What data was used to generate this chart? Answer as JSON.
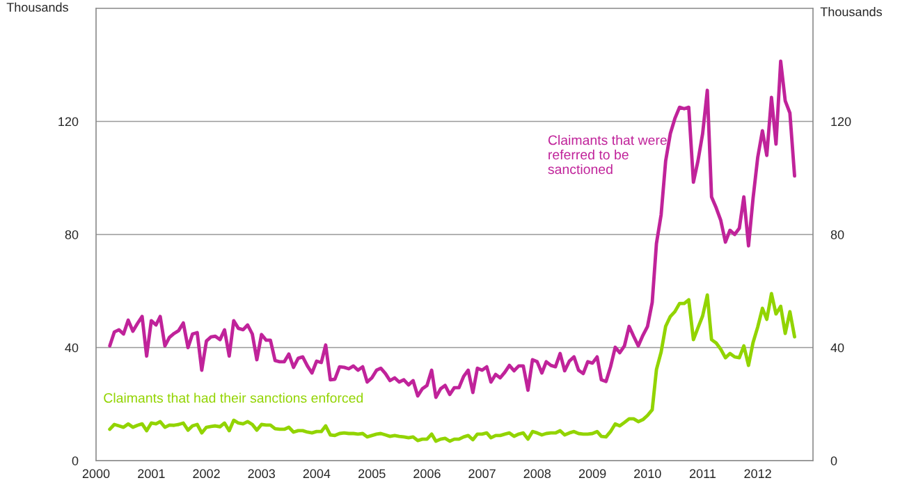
{
  "chart_data": {
    "type": "line",
    "ylabel": "Thousands",
    "y2label": "Thousands",
    "x": [
      "2000-04",
      "2000-05",
      "2000-06",
      "2000-07",
      "2000-08",
      "2000-09",
      "2000-10",
      "2000-11",
      "2000-12",
      "2001-01",
      "2001-02",
      "2001-03",
      "2001-04",
      "2001-05",
      "2001-06",
      "2001-07",
      "2001-08",
      "2001-09",
      "2001-10",
      "2001-11",
      "2001-12",
      "2002-01",
      "2002-02",
      "2002-03",
      "2002-04",
      "2002-05",
      "2002-06",
      "2002-07",
      "2002-08",
      "2002-09",
      "2002-10",
      "2002-11",
      "2002-12",
      "2003-01",
      "2003-02",
      "2003-03",
      "2003-04",
      "2003-05",
      "2003-06",
      "2003-07",
      "2003-08",
      "2003-09",
      "2003-10",
      "2003-11",
      "2003-12",
      "2004-01",
      "2004-02",
      "2004-03",
      "2004-04",
      "2004-05",
      "2004-06",
      "2004-07",
      "2004-08",
      "2004-09",
      "2004-10",
      "2004-11",
      "2004-12",
      "2005-01",
      "2005-02",
      "2005-03",
      "2005-04",
      "2005-05",
      "2005-06",
      "2005-07",
      "2005-08",
      "2005-09",
      "2005-10",
      "2005-11",
      "2005-12",
      "2006-01",
      "2006-02",
      "2006-03",
      "2006-04",
      "2006-05",
      "2006-06",
      "2006-07",
      "2006-08",
      "2006-09",
      "2006-10",
      "2006-11",
      "2006-12",
      "2007-01",
      "2007-02",
      "2007-03",
      "2007-04",
      "2007-05",
      "2007-06",
      "2007-07",
      "2007-08",
      "2007-09",
      "2007-10",
      "2007-11",
      "2007-12",
      "2008-01",
      "2008-02",
      "2008-03",
      "2008-04",
      "2008-05",
      "2008-06",
      "2008-07",
      "2008-08",
      "2008-09",
      "2008-10",
      "2008-11",
      "2008-12",
      "2009-01",
      "2009-02",
      "2009-03",
      "2009-04",
      "2009-05",
      "2009-06",
      "2009-07",
      "2009-08",
      "2009-09",
      "2009-10",
      "2009-11",
      "2009-12",
      "2010-01",
      "2010-02",
      "2010-03",
      "2010-04",
      "2010-05",
      "2010-06",
      "2010-07",
      "2010-08",
      "2010-09",
      "2010-10",
      "2010-11",
      "2010-12",
      "2011-01",
      "2011-02",
      "2011-03",
      "2011-04",
      "2011-05",
      "2011-06",
      "2011-07",
      "2011-08",
      "2011-09",
      "2011-10",
      "2011-11",
      "2011-12",
      "2012-01",
      "2012-02",
      "2012-03",
      "2012-04",
      "2012-05",
      "2012-06",
      "2012-07",
      "2012-08",
      "2012-09"
    ],
    "series": [
      {
        "name": "Claimants that were referred to be sanctioned",
        "color": "#c0239a",
        "values": [
          40.6,
          45.5,
          46.3,
          44.8,
          49.7,
          45.8,
          48.5,
          51,
          37,
          49.5,
          48,
          51,
          40.6,
          43.6,
          45,
          46,
          48.7,
          40,
          44.8,
          45.3,
          32,
          42.3,
          43.8,
          44,
          42.8,
          46.3,
          37,
          49.5,
          46.8,
          46.3,
          48,
          44.8,
          35.7,
          44.6,
          42.6,
          42.6,
          35.4,
          35,
          35,
          37.7,
          33,
          36.2,
          36.7,
          33.5,
          31,
          35.2,
          34.7,
          40.9,
          28.6,
          28.8,
          33.2,
          33,
          32.5,
          33.5,
          32,
          33.2,
          27.8,
          29.3,
          32,
          32.7,
          30.8,
          28.3,
          29.3,
          27.8,
          28.6,
          26.8,
          28.3,
          22.9,
          25.4,
          26.6,
          32,
          22.4,
          25.4,
          26.6,
          23.4,
          25.8,
          25.8,
          29.8,
          32,
          24.1,
          32.7,
          32,
          33.2,
          27.8,
          30.5,
          29.3,
          31.3,
          33.7,
          31.8,
          33.5,
          33.5,
          24.9,
          35.7,
          35,
          31,
          35,
          33.7,
          33.2,
          37.9,
          31.8,
          35.2,
          36.7,
          32,
          30.8,
          35,
          34.5,
          36.7,
          28.6,
          28,
          33.2,
          40.1,
          38.2,
          40.6,
          47.5,
          44,
          40.6,
          44.3,
          47.5,
          56,
          76.8,
          87,
          106,
          115.7,
          121,
          125,
          124.5,
          125,
          98.5,
          106,
          115.7,
          131,
          93.3,
          89.4,
          85,
          77.3,
          81.5,
          80,
          82.2,
          93.3,
          76,
          92.8,
          107.3,
          116.7,
          108,
          128.5,
          112,
          141.3,
          127.3,
          123,
          100.7
        ]
      },
      {
        "name": "Claimants that had their sanctions enforced",
        "color": "#92d400",
        "values": [
          11.1,
          12.8,
          12.3,
          11.8,
          13,
          11.8,
          12.5,
          13,
          10.6,
          13.3,
          13,
          13.8,
          11.8,
          12.6,
          12.5,
          12.8,
          13.3,
          10.8,
          12.3,
          12.8,
          9.8,
          11.8,
          12.1,
          12.3,
          12,
          13.3,
          10.6,
          14.3,
          13.3,
          13,
          13.8,
          12.8,
          10.8,
          12.8,
          12.6,
          12.6,
          11.3,
          11.1,
          11.1,
          11.8,
          10.1,
          10.6,
          10.6,
          10.1,
          9.8,
          10.3,
          10.3,
          12.3,
          9.1,
          8.9,
          9.6,
          9.8,
          9.6,
          9.6,
          9.4,
          9.6,
          8.4,
          8.9,
          9.4,
          9.6,
          9.1,
          8.6,
          8.9,
          8.6,
          8.4,
          8.1,
          8.4,
          7.1,
          7.6,
          7.6,
          9.4,
          6.9,
          7.6,
          7.9,
          6.9,
          7.6,
          7.6,
          8.4,
          8.9,
          7.4,
          9.4,
          9.4,
          9.8,
          8.1,
          8.9,
          8.9,
          9.4,
          9.8,
          8.6,
          9.4,
          9.8,
          7.6,
          10.3,
          9.8,
          9.1,
          9.6,
          9.8,
          9.8,
          10.6,
          9.1,
          9.8,
          10.3,
          9.6,
          9.4,
          9.4,
          9.6,
          10.3,
          8.6,
          8.4,
          10.3,
          13,
          12.3,
          13.5,
          14.8,
          14.8,
          13.8,
          14.5,
          16,
          18,
          32.2,
          38.4,
          47.5,
          51,
          52.7,
          55.6,
          55.6,
          56.9,
          42.8,
          47,
          51.2,
          58.6,
          42.8,
          41.6,
          39.4,
          36.4,
          37.9,
          36.7,
          36.4,
          40.6,
          33.7,
          41.8,
          47.3,
          53.9,
          50,
          59.1,
          51.9,
          54.6,
          45,
          52.7,
          43.8
        ]
      }
    ],
    "xlim": [
      "2000-01",
      "2013-01"
    ],
    "xticks": [
      "2000",
      "2001",
      "2002",
      "2003",
      "2004",
      "2005",
      "2006",
      "2007",
      "2008",
      "2009",
      "2010",
      "2011",
      "2012"
    ],
    "ylim": [
      0,
      160
    ],
    "yticks": [
      0,
      40,
      80,
      120
    ],
    "y2lim": [
      0,
      160
    ],
    "y2ticks": [
      0,
      40,
      80,
      120
    ],
    "grid": "y",
    "legend": false,
    "marker": "none",
    "line_style": "solid"
  }
}
